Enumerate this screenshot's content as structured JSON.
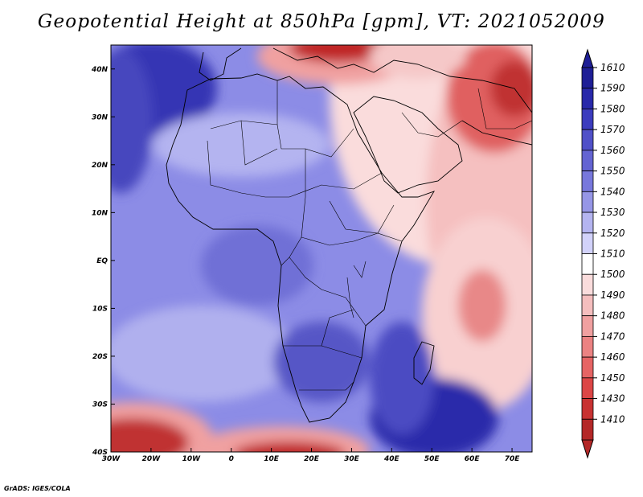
{
  "title": "Geopotential Height at 850hPa [gpm], VT: 2021052009",
  "credit": "GrADS: IGES/COLA",
  "map": {
    "lon_range": [
      -30,
      75
    ],
    "lat_range": [
      -40,
      45
    ],
    "lon_ticks": [
      {
        "lon": -30,
        "label": "30W"
      },
      {
        "lon": -20,
        "label": "20W"
      },
      {
        "lon": -10,
        "label": "10W"
      },
      {
        "lon": 0,
        "label": "0"
      },
      {
        "lon": 10,
        "label": "10E"
      },
      {
        "lon": 20,
        "label": "20E"
      },
      {
        "lon": 30,
        "label": "30E"
      },
      {
        "lon": 40,
        "label": "40E"
      },
      {
        "lon": 50,
        "label": "50E"
      },
      {
        "lon": 60,
        "label": "60E"
      },
      {
        "lon": 70,
        "label": "70E"
      }
    ],
    "lat_ticks": [
      {
        "lat": 40,
        "label": "40N"
      },
      {
        "lat": 30,
        "label": "30N"
      },
      {
        "lat": 20,
        "label": "20N"
      },
      {
        "lat": 10,
        "label": "10N"
      },
      {
        "lat": 0,
        "label": "EQ"
      },
      {
        "lat": -10,
        "label": "10S"
      },
      {
        "lat": -20,
        "label": "20S"
      },
      {
        "lat": -30,
        "label": "30S"
      },
      {
        "lat": -40,
        "label": "40S"
      }
    ]
  },
  "colorbar": {
    "labels": [
      "1610",
      "1590",
      "1580",
      "1570",
      "1560",
      "1550",
      "1540",
      "1530",
      "1520",
      "1510",
      "1500",
      "1490",
      "1480",
      "1470",
      "1460",
      "1450",
      "1430",
      "1410"
    ],
    "colors": [
      "#1e1e96",
      "#2828aa",
      "#3c3cbe",
      "#5050c8",
      "#6464d2",
      "#7878dc",
      "#9696e6",
      "#b4b4f0",
      "#d2d2fa",
      "#ffffff",
      "#fadcdc",
      "#f5bebe",
      "#f0a0a0",
      "#eb8282",
      "#e66464",
      "#dc4646",
      "#c83232",
      "#b42828"
    ]
  }
}
